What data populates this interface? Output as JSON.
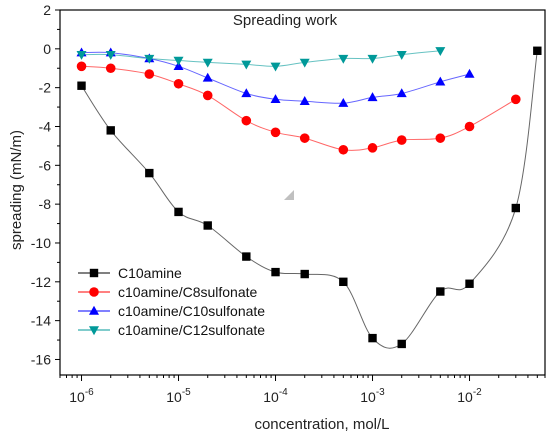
{
  "chart_data": {
    "type": "scatter",
    "title": "Spreading work",
    "xlabel": "concentration, mol/L",
    "ylabel": "spreading (mN/m)",
    "xscale": "log",
    "xlim": [
      6e-07,
      0.06
    ],
    "ylim": [
      -16.8,
      2
    ],
    "x_tick_labels": [
      {
        "value": 1e-06,
        "base": "10",
        "exp": "-6"
      },
      {
        "value": 1e-05,
        "base": "10",
        "exp": "-5"
      },
      {
        "value": 0.0001,
        "base": "10",
        "exp": "-4"
      },
      {
        "value": 0.001,
        "base": "10",
        "exp": "-3"
      },
      {
        "value": 0.01,
        "base": "10",
        "exp": "-2"
      }
    ],
    "y_ticks": [
      2,
      0,
      -2,
      -4,
      -6,
      -8,
      -10,
      -12,
      -14,
      -16
    ],
    "y_tick_labels": [
      "2",
      "0",
      "-2",
      "-4",
      "-6",
      "-8",
      "-10",
      "-12",
      "-14",
      "-16"
    ],
    "grid": false,
    "legend_position": "bottom-left",
    "series": [
      {
        "name": "C10amine",
        "marker": "square",
        "color": "#000000",
        "x": [
          1e-06,
          2e-06,
          5e-06,
          1e-05,
          2e-05,
          5e-05,
          0.0001,
          0.0002,
          0.0005,
          0.001,
          0.002,
          0.005,
          0.01,
          0.03,
          0.05
        ],
        "y": [
          -1.9,
          -4.2,
          -6.4,
          -8.4,
          -9.1,
          -10.7,
          -11.5,
          -11.6,
          -12.0,
          -14.9,
          -15.2,
          -12.5,
          -12.1,
          -8.2,
          -0.1
        ]
      },
      {
        "name": "c10amine/C8sulfonate",
        "marker": "circle",
        "color": "#ff0000",
        "x": [
          1e-06,
          2e-06,
          5e-06,
          1e-05,
          2e-05,
          5e-05,
          0.0001,
          0.0002,
          0.0005,
          0.001,
          0.002,
          0.005,
          0.01,
          0.03
        ],
        "y": [
          -0.9,
          -1.0,
          -1.3,
          -1.8,
          -2.4,
          -3.7,
          -4.3,
          -4.6,
          -5.2,
          -5.1,
          -4.7,
          -4.6,
          -4.0,
          -2.6
        ]
      },
      {
        "name": "c10amine/C10sulfonate",
        "marker": "triangle-up",
        "color": "#0000ff",
        "x": [
          1e-06,
          2e-06,
          5e-06,
          1e-05,
          2e-05,
          5e-05,
          0.0001,
          0.0002,
          0.0005,
          0.001,
          0.002,
          0.005,
          0.01
        ],
        "y": [
          -0.2,
          -0.2,
          -0.5,
          -0.9,
          -1.5,
          -2.3,
          -2.6,
          -2.7,
          -2.8,
          -2.5,
          -2.3,
          -1.7,
          -1.3
        ]
      },
      {
        "name": "c10amine/C12sulfonate",
        "marker": "triangle-down",
        "color": "#009999",
        "x": [
          1e-06,
          2e-06,
          5e-06,
          1e-05,
          2e-05,
          5e-05,
          0.0001,
          0.0002,
          0.0005,
          0.001,
          0.002,
          0.005
        ],
        "y": [
          -0.3,
          -0.3,
          -0.5,
          -0.6,
          -0.7,
          -0.8,
          -0.9,
          -0.7,
          -0.5,
          -0.5,
          -0.3,
          -0.1
        ]
      }
    ]
  }
}
